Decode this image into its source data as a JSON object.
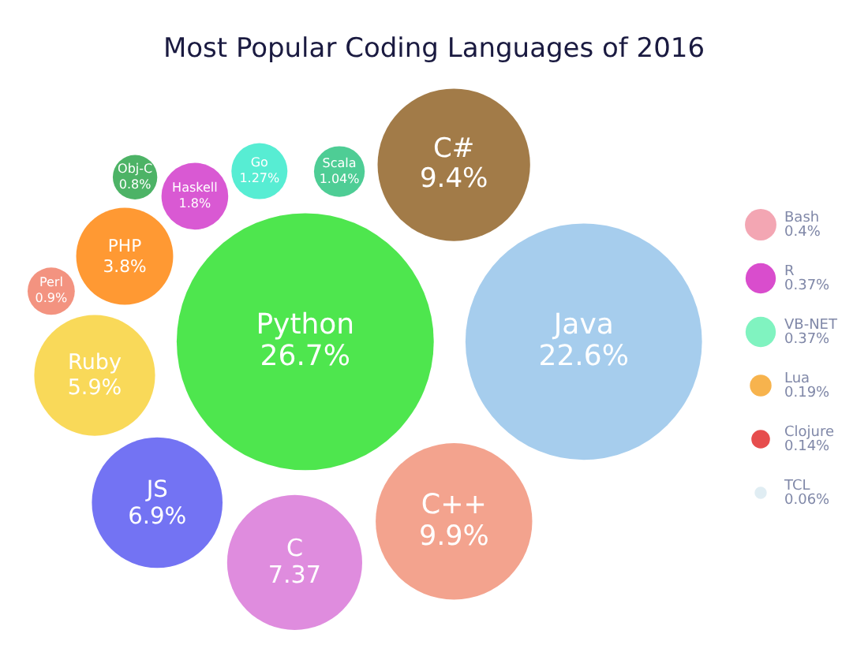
{
  "chart_data": {
    "type": "other",
    "title": "Most Popular Coding Languages of 2016",
    "categories": [
      "Python",
      "Java",
      "C++",
      "C#",
      "C",
      "JS",
      "Ruby",
      "PHP",
      "Haskell",
      "Go",
      "Scala",
      "Perl",
      "Obj-C",
      "Bash",
      "R",
      "VB-NET",
      "Lua",
      "Clojure",
      "TCL"
    ],
    "values": [
      26.7,
      22.6,
      9.9,
      9.4,
      7.37,
      6.9,
      5.9,
      3.8,
      1.8,
      1.27,
      1.04,
      0.9,
      0.8,
      0.4,
      0.37,
      0.37,
      0.19,
      0.14,
      0.06
    ],
    "value_labels": [
      "26.7%",
      "22.6%",
      "9.9%",
      "9.4%",
      "7.37",
      "6.9%",
      "5.9%",
      "3.8%",
      "1.8%",
      "1.27%",
      "1.04%",
      "0.9%",
      "0.8%",
      "0.4%",
      "0.37%",
      "0.37%",
      "0.19%",
      "0.14%",
      "0.06%"
    ],
    "colors": [
      "#22e022",
      "#90c0e8",
      "#f08c72",
      "#8b5a1a",
      "#d76fd6",
      "#5050f0",
      "#f8d030",
      "#ff8000",
      "#d030c8",
      "#2de8c8",
      "#22c07a",
      "#f07860",
      "#20a040",
      "#f090a0",
      "#d020c0",
      "#60f0b0",
      "#f5a020",
      "#e02020",
      "#d8e8f0"
    ]
  }
}
